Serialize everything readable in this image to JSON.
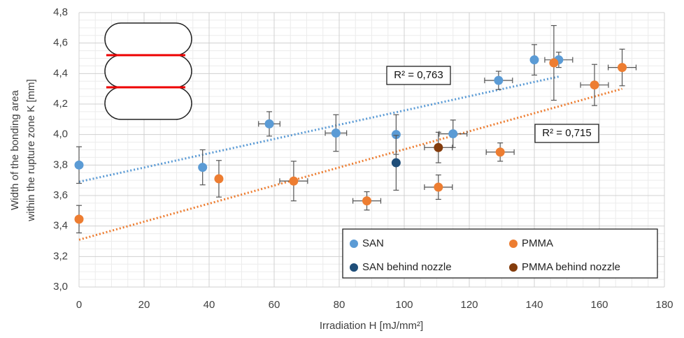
{
  "chart_data": {
    "type": "scatter",
    "xlabel": "Irradiation H [mJ/mm²]",
    "ylabel": [
      "Width of the bonding area",
      "within the rupture zone K [mm]"
    ],
    "xlim": [
      0,
      180
    ],
    "xticks": [
      0,
      20,
      40,
      60,
      80,
      100,
      120,
      140,
      160,
      180
    ],
    "ylim": [
      3.0,
      4.8
    ],
    "yticks": [
      {
        "value": 3.0,
        "label": "3,0"
      },
      {
        "value": 3.2,
        "label": "3,2"
      },
      {
        "value": 3.4,
        "label": "3,4"
      },
      {
        "value": 3.6,
        "label": "3,6"
      },
      {
        "value": 3.8,
        "label": "3,8"
      },
      {
        "value": 4.0,
        "label": "4,0"
      },
      {
        "value": 4.2,
        "label": "4,2"
      },
      {
        "value": 4.4,
        "label": "4,4"
      },
      {
        "value": 4.6,
        "label": "4,6"
      },
      {
        "value": 4.8,
        "label": "4,8"
      }
    ],
    "grid": true,
    "minor_grid": true,
    "legend": "lower right",
    "series": [
      {
        "name": "SAN",
        "color": "#5b9bd5",
        "x": [
          0,
          38,
          58.5,
          79,
          97.5,
          115,
          129,
          140,
          147.5
        ],
        "values": [
          3.8,
          3.785,
          4.07,
          4.01,
          4.0,
          4.005,
          4.355,
          4.49,
          4.49
        ],
        "x_errors": [
          null,
          null,
          2,
          2,
          null,
          3,
          3,
          null,
          3
        ],
        "y_errors": [
          0.12,
          0.115,
          0.08,
          0.12,
          0.13,
          0.09,
          0.06,
          0.1,
          0.05
        ]
      },
      {
        "name": "PMMA",
        "color": "#ed7d31",
        "x": [
          0,
          43,
          66,
          88.5,
          110.5,
          129.5,
          146,
          158.5,
          167
        ],
        "values": [
          3.445,
          3.71,
          3.695,
          3.565,
          3.655,
          3.885,
          4.47,
          4.325,
          4.44
        ],
        "x_errors": [
          null,
          null,
          3,
          3,
          3,
          3,
          null,
          3,
          3
        ],
        "y_errors": [
          0.09,
          0.12,
          0.13,
          0.06,
          0.08,
          0.06,
          0.245,
          0.135,
          0.12
        ]
      },
      {
        "name": "SAN behind nozzle",
        "color": "#1f4e79",
        "x": [
          97.5
        ],
        "values": [
          3.815
        ],
        "x_errors": [
          null
        ],
        "y_errors": [
          0.18
        ]
      },
      {
        "name": "PMMA behind nozzle",
        "color": "#843c0c",
        "x": [
          110.5
        ],
        "values": [
          3.915
        ],
        "x_errors": [
          3
        ],
        "y_errors": [
          0.1
        ]
      }
    ],
    "trendlines": [
      {
        "label": "R² = 0,763",
        "color": "#5b9bd5",
        "x": [
          0,
          147.5
        ],
        "values": [
          3.69,
          4.38
        ]
      },
      {
        "label": "R² = 0,715",
        "color": "#ed7d31",
        "x": [
          0,
          167
        ],
        "values": [
          3.31,
          4.3
        ]
      }
    ]
  }
}
